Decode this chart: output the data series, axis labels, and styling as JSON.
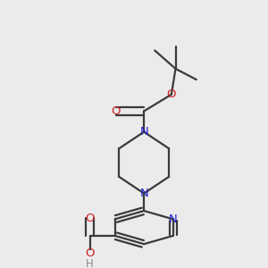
{
  "bg_color": "#ebebeb",
  "bond_color": "#3a3a3a",
  "n_color": "#2020cc",
  "o_color": "#cc2020",
  "h_color": "#888888",
  "line_width": 1.6,
  "dbo": 0.018,
  "figsize": [
    3.0,
    3.0
  ],
  "dpi": 100,
  "xlim": [
    0.0,
    1.0
  ],
  "ylim": [
    0.0,
    1.0
  ]
}
